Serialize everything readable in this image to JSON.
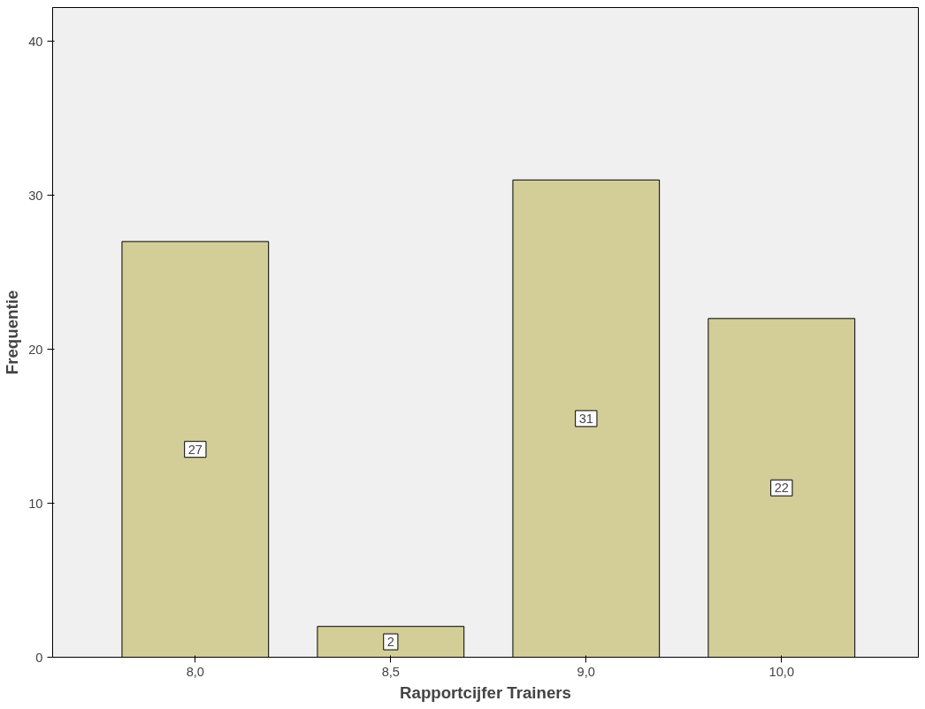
{
  "chart_data": {
    "type": "bar",
    "xlabel": "Rapportcijfer Trainers",
    "ylabel": "Frequentie",
    "categories": [
      "8,0",
      "8,5",
      "9,0",
      "10,0"
    ],
    "values": [
      27,
      2,
      31,
      22
    ],
    "color": "#d3ce97",
    "ylim": [
      0,
      42.2
    ],
    "yticks": [
      0,
      10,
      20,
      30,
      40
    ],
    "grid": false,
    "data_labels": true
  }
}
